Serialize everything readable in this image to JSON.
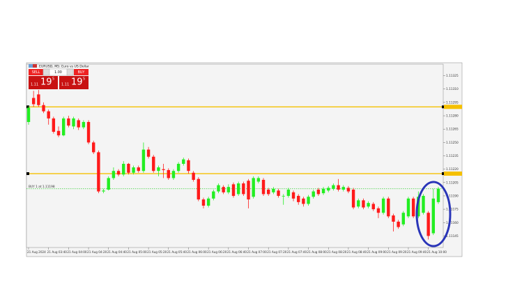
{
  "chart_data": {
    "type": "candlestick",
    "title": "EURUSD, M5: Euro vs US Dollar",
    "trade_panel": {
      "sell": "SELL",
      "buy": "BUY",
      "lot": "1.00",
      "sell_price": {
        "big": "1.11",
        "pips": "19",
        "frac": "5"
      },
      "buy_price": {
        "big": "1.11",
        "pips": "19",
        "frac": "5"
      }
    },
    "position": {
      "label": "BUY 1 at 1.11198",
      "price": 1.11198,
      "color": "#33cc33"
    },
    "levels": [
      1.1129,
      1.11215
    ],
    "level_color": "#f5c000",
    "up_color": "#22ee22",
    "down_color": "#ff1a1a",
    "ylim": [
      1.11132,
      1.11338
    ],
    "yticks": [
      1.11325,
      {
        "value": 1.1131,
        "label": "1.11310"
      },
      1.11295,
      {
        "value": 1.1128,
        "label": "1.11280"
      },
      1.11265,
      {
        "value": 1.1125,
        "label": "1.11250"
      },
      1.11235,
      {
        "value": 1.1122,
        "label": "1.11220"
      },
      1.11205,
      {
        "value": 1.1119,
        "label": "1.11190"
      },
      1.11175,
      {
        "value": 1.1116,
        "label": "1.11160"
      },
      1.11145
    ],
    "categories": [
      "21 Aug 2024",
      null,
      null,
      null,
      "21 Aug 03:40",
      null,
      null,
      null,
      "21 Aug 04:00",
      null,
      null,
      null,
      "21 Aug 04:20",
      null,
      null,
      null,
      "21 Aug 04:40",
      null,
      null,
      null,
      "21 Aug 05:00",
      null,
      null,
      null,
      "21 Aug 05:20",
      null,
      null,
      null,
      "21 Aug 05:40",
      null,
      null,
      null,
      "21 Aug 06:00",
      null,
      null,
      null,
      "21 Aug 06:20",
      null,
      null,
      null,
      "21 Aug 06:40",
      null,
      null,
      null,
      "21 Aug 07:00",
      null,
      null,
      null,
      "21 Aug 07:20",
      null,
      null,
      null,
      "21 Aug 07:40",
      null,
      null,
      null,
      "21 Aug 08:00",
      null,
      null,
      null,
      "21 Aug 08:20",
      null,
      null,
      null,
      "21 Aug 08:40",
      null,
      null,
      null,
      "21 Aug 09:00",
      null,
      null,
      null,
      "21 Aug 09:20",
      null,
      null,
      null,
      "21 Aug 09:40",
      null,
      null,
      null,
      "21 Aug 10:00",
      null,
      null
    ],
    "open": [
      1.11273,
      1.113,
      1.11304,
      1.11292,
      1.11285,
      1.11277,
      1.11263,
      1.11258,
      1.11277,
      1.11268,
      1.11275,
      1.11267,
      1.11273,
      1.1125,
      1.11239,
      1.11195,
      1.11197,
      1.1121,
      1.11218,
      1.11214,
      1.11226,
      1.11216,
      1.11222,
      1.11218,
      1.11242,
      1.11234,
      1.11218,
      1.1122,
      1.11219,
      1.1121,
      1.11218,
      1.11226,
      1.1123,
      1.11216,
      1.11209,
      1.11186,
      1.11179,
      1.11187,
      1.11195,
      1.112,
      1.11194,
      1.11203,
      1.11192,
      1.11204,
      1.11207,
      1.11189,
      1.11206,
      1.11208,
      1.11197,
      1.11194,
      1.11196,
      1.1119,
      1.1119,
      1.11194,
      1.1119,
      1.11187,
      1.11181,
      1.11189,
      1.11197,
      1.11193,
      1.11196,
      1.11198,
      1.11202,
      1.11197,
      1.11199,
      1.11197,
      1.11178,
      1.11185,
      1.11178,
      1.11181,
      1.11176,
      1.11171,
      1.11187,
      1.11168,
      1.11161,
      1.11158,
      1.11167,
      1.11187,
      1.11167,
      1.11171,
      1.11171,
      1.11148,
      1.11183
    ],
    "high": [
      1.11291,
      1.11308,
      1.11309,
      1.11295,
      1.11287,
      1.11279,
      1.11268,
      1.11279,
      1.1128,
      1.11279,
      1.11277,
      1.11275,
      1.11275,
      1.11252,
      1.11241,
      1.11198,
      1.11212,
      1.11222,
      1.1122,
      1.11229,
      1.11227,
      1.11224,
      1.11224,
      1.1125,
      1.11245,
      1.11236,
      1.11224,
      1.11226,
      1.11221,
      1.1122,
      1.11228,
      1.11233,
      1.11232,
      1.11218,
      1.11211,
      1.11188,
      1.11189,
      1.11197,
      1.11204,
      1.11202,
      1.11203,
      1.11205,
      1.11206,
      1.11206,
      1.11209,
      1.11212,
      1.11212,
      1.1121,
      1.11199,
      1.112,
      1.11198,
      1.11192,
      1.11199,
      1.11196,
      1.11192,
      1.11189,
      1.11191,
      1.11197,
      1.11199,
      1.112,
      1.11201,
      1.11204,
      1.11209,
      1.11202,
      1.11201,
      1.11199,
      1.11187,
      1.11187,
      1.11184,
      1.11183,
      1.11178,
      1.11189,
      1.11189,
      1.1117,
      1.11163,
      1.11173,
      1.11189,
      1.11189,
      1.11195,
      1.11192,
      1.11173,
      1.11198,
      1.112
    ],
    "low": [
      1.1127,
      1.1129,
      1.1129,
      1.11283,
      1.1127,
      1.1126,
      1.11256,
      1.11257,
      1.11267,
      1.11265,
      1.11264,
      1.11265,
      1.11248,
      1.11237,
      1.11193,
      1.11193,
      1.11196,
      1.11208,
      1.11212,
      1.11212,
      1.11214,
      1.11214,
      1.11216,
      1.11216,
      1.11232,
      1.11216,
      1.11212,
      1.1121,
      1.11208,
      1.11208,
      1.11216,
      1.11224,
      1.11215,
      1.11206,
      1.11184,
      1.11176,
      1.11177,
      1.11185,
      1.11193,
      1.11192,
      1.11192,
      1.11188,
      1.1119,
      1.1119,
      1.11176,
      1.11187,
      1.11204,
      1.1119,
      1.1119,
      1.11192,
      1.11188,
      1.1118,
      1.11188,
      1.11184,
      1.1118,
      1.11178,
      1.11179,
      1.11187,
      1.1119,
      1.11191,
      1.11194,
      1.11196,
      1.11195,
      1.11195,
      1.11193,
      1.11175,
      1.11176,
      1.11175,
      1.11176,
      1.11173,
      1.11165,
      1.11169,
      1.11165,
      1.1115,
      1.11153,
      1.11156,
      1.11165,
      1.11165,
      1.11165,
      1.11169,
      1.11141,
      1.11146,
      1.11181
    ],
    "close": [
      1.11289,
      1.11293,
      1.11292,
      1.11285,
      1.11277,
      1.11262,
      1.11258,
      1.11277,
      1.11269,
      1.11277,
      1.11267,
      1.11273,
      1.1125,
      1.11239,
      1.11195,
      1.11196,
      1.1121,
      1.11218,
      1.11214,
      1.11226,
      1.11216,
      1.11222,
      1.11218,
      1.11242,
      1.11234,
      1.11218,
      1.11222,
      1.11219,
      1.1121,
      1.11218,
      1.11226,
      1.11231,
      1.11218,
      1.11208,
      1.11186,
      1.11179,
      1.11187,
      1.11195,
      1.11202,
      1.11194,
      1.112,
      1.1119,
      1.11204,
      1.11192,
      1.11186,
      1.1121,
      1.1121,
      1.11192,
      1.11192,
      1.11198,
      1.1119,
      1.1119,
      1.11197,
      1.11187,
      1.11183,
      1.11181,
      1.11189,
      1.11195,
      1.11192,
      1.11198,
      1.11199,
      1.11202,
      1.11197,
      1.112,
      1.11195,
      1.11177,
      1.11185,
      1.11177,
      1.11182,
      1.11175,
      1.11171,
      1.11187,
      1.11167,
      1.11161,
      1.11155,
      1.11171,
      1.11187,
      1.11167,
      1.11189,
      1.1119,
      1.11145,
      1.11187,
      1.11198
    ]
  }
}
